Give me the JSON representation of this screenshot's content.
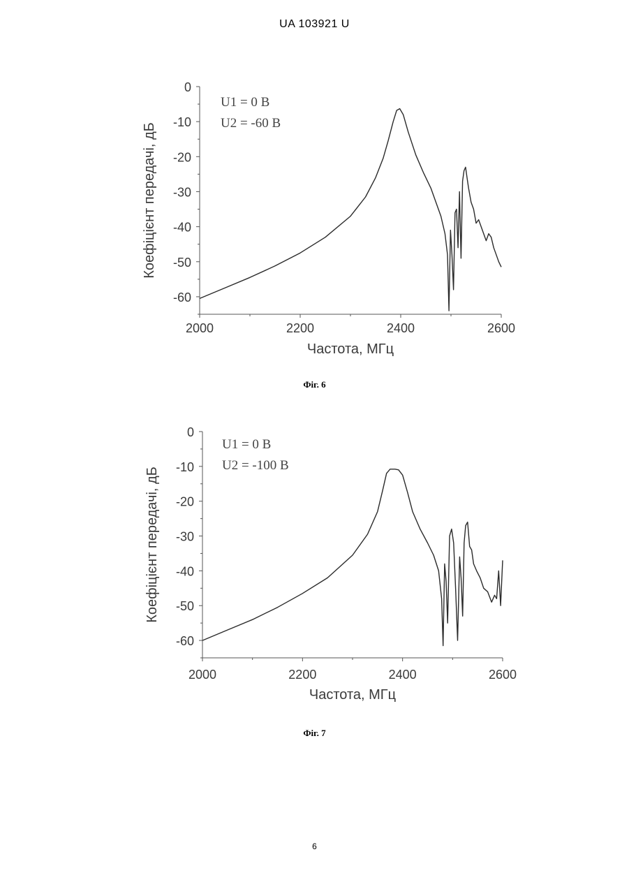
{
  "header": {
    "doc_id": "UA   103921   U"
  },
  "page_number": "6",
  "chart_data": [
    {
      "type": "line",
      "caption": "Фіг. 6",
      "xlabel": "Частота, МГц",
      "ylabel": "Коефіцієнт передачі, дБ",
      "xlim": [
        2000,
        2600
      ],
      "ylim": [
        -65,
        0
      ],
      "xticks": [
        2000,
        2200,
        2400,
        2600
      ],
      "yticks": [
        0,
        -10,
        -20,
        -30,
        -40,
        -50,
        -60
      ],
      "annotations": [
        "U1 =  0 В",
        "U2 = -60 В"
      ],
      "grid": false,
      "series": [
        {
          "x": [
            2000,
            2050,
            2100,
            2150,
            2200,
            2250,
            2300,
            2330,
            2350,
            2365,
            2375,
            2385,
            2392,
            2398,
            2405,
            2415,
            2430,
            2445,
            2460,
            2470,
            2480,
            2488,
            2493,
            2496,
            2499,
            2502,
            2505,
            2508,
            2511,
            2514,
            2517,
            2520,
            2523,
            2526,
            2529,
            2532,
            2535,
            2540,
            2545,
            2550,
            2555,
            2560,
            2565,
            2570,
            2575,
            2580,
            2585,
            2590,
            2595,
            2600
          ],
          "y": [
            -60.5,
            -57.5,
            -54.5,
            -51.2,
            -47.5,
            -43,
            -37,
            -31.5,
            -26,
            -20.5,
            -15.5,
            -10,
            -6.8,
            -6.3,
            -8,
            -13,
            -19.5,
            -24.5,
            -29,
            -33,
            -37,
            -42,
            -48,
            -64,
            -41,
            -48,
            -58,
            -36,
            -35,
            -46,
            -30,
            -49,
            -27,
            -24,
            -23,
            -26,
            -29,
            -33,
            -35,
            -39,
            -38,
            -40,
            -42,
            -44,
            -42,
            -43,
            -46,
            -48,
            -50,
            -51.5
          ]
        }
      ]
    },
    {
      "type": "line",
      "caption": "Фіг. 7",
      "xlabel": "Частота, МГц",
      "ylabel": "Коефіцієнт передачі, дБ",
      "xlim": [
        2000,
        2600
      ],
      "ylim": [
        -65,
        0
      ],
      "xticks": [
        2000,
        2200,
        2400,
        2600
      ],
      "yticks": [
        0,
        -10,
        -20,
        -30,
        -40,
        -50,
        -60
      ],
      "annotations": [
        "U1 =  0 В",
        "U2 = -100 В"
      ],
      "grid": false,
      "series": [
        {
          "x": [
            2000,
            2050,
            2100,
            2150,
            2200,
            2250,
            2300,
            2330,
            2350,
            2360,
            2368,
            2375,
            2385,
            2392,
            2400,
            2410,
            2420,
            2435,
            2450,
            2462,
            2472,
            2478,
            2481,
            2484,
            2487,
            2490,
            2494,
            2498,
            2502,
            2506,
            2510,
            2514,
            2517,
            2520,
            2523,
            2526,
            2530,
            2534,
            2538,
            2542,
            2548,
            2555,
            2562,
            2570,
            2578,
            2584,
            2588,
            2592,
            2596,
            2600
          ],
          "y": [
            -60,
            -57,
            -54,
            -50.5,
            -46.5,
            -42,
            -35.5,
            -29.5,
            -23,
            -17,
            -12,
            -10.8,
            -10.8,
            -11,
            -12.5,
            -17.5,
            -23,
            -28,
            -32,
            -35.5,
            -40,
            -48,
            -61.5,
            -38,
            -43,
            -55,
            -30,
            -28,
            -32,
            -45,
            -60,
            -36,
            -42,
            -53,
            -32,
            -27,
            -26,
            -33,
            -34,
            -38,
            -40,
            -42,
            -45,
            -46,
            -49,
            -47,
            -48,
            -40,
            -50,
            -37
          ]
        }
      ]
    }
  ]
}
